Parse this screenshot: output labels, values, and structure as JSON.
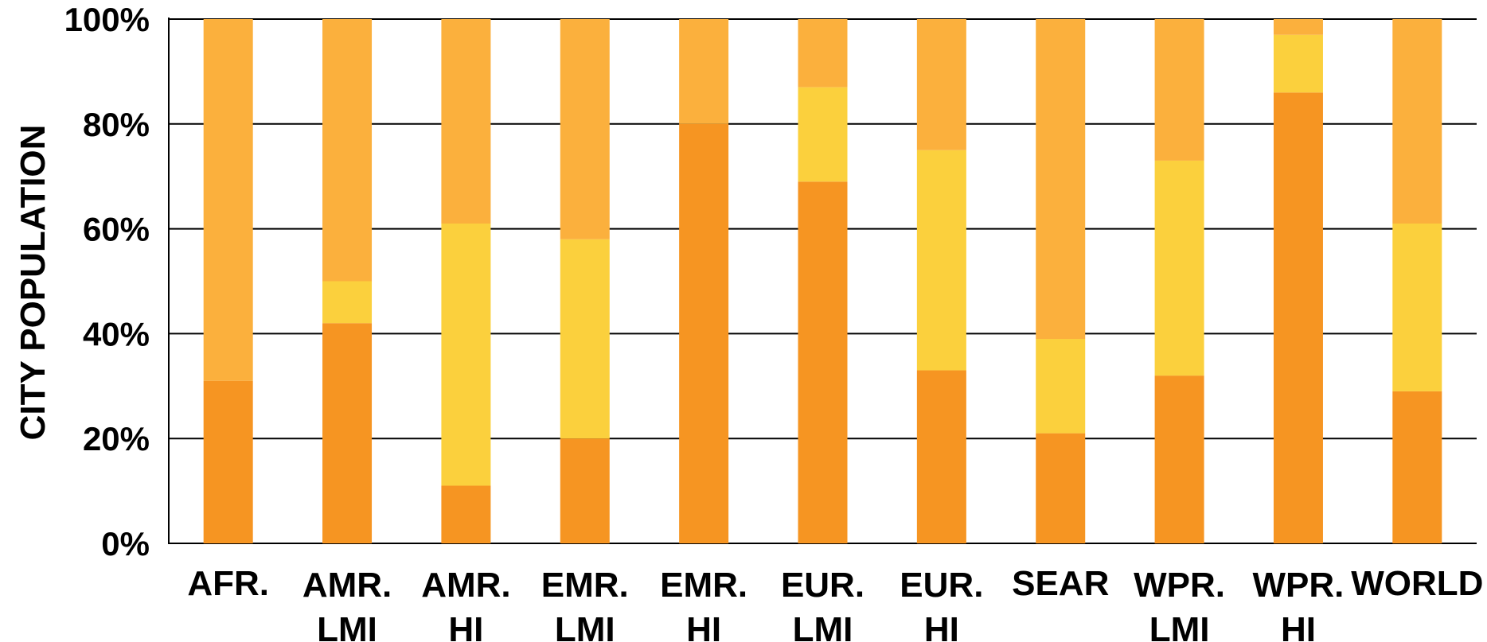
{
  "chart_data": {
    "type": "bar",
    "stacked": true,
    "ylabel": "CITY POPULATION",
    "ylim": [
      0,
      100
    ],
    "yticks": [
      "0%",
      "20%",
      "40%",
      "60%",
      "80%",
      "100%"
    ],
    "categories": [
      [
        "AFR."
      ],
      [
        "AMR.",
        "LMI"
      ],
      [
        "AMR.",
        "HI"
      ],
      [
        "EMR.",
        "LMI"
      ],
      [
        "EMR.",
        "HI"
      ],
      [
        "EUR.",
        "LMI"
      ],
      [
        "EUR.",
        "HI"
      ],
      [
        "SEAR"
      ],
      [
        "WPR.",
        "LMI"
      ],
      [
        "WPR.",
        "HI"
      ],
      [
        "WORLD"
      ]
    ],
    "series": [
      {
        "color": "#F69522",
        "values": [
          31,
          42,
          11,
          20,
          80,
          69,
          33,
          21,
          32,
          86,
          29
        ]
      },
      {
        "color": "#FBD03D",
        "values": [
          0,
          8,
          50,
          38,
          0,
          18,
          42,
          18,
          41,
          11,
          32
        ]
      },
      {
        "color": "#FBB03D",
        "values": [
          69,
          50,
          39,
          42,
          20,
          13,
          25,
          61,
          27,
          3,
          39
        ]
      }
    ],
    "grid": true,
    "legend": "none"
  }
}
